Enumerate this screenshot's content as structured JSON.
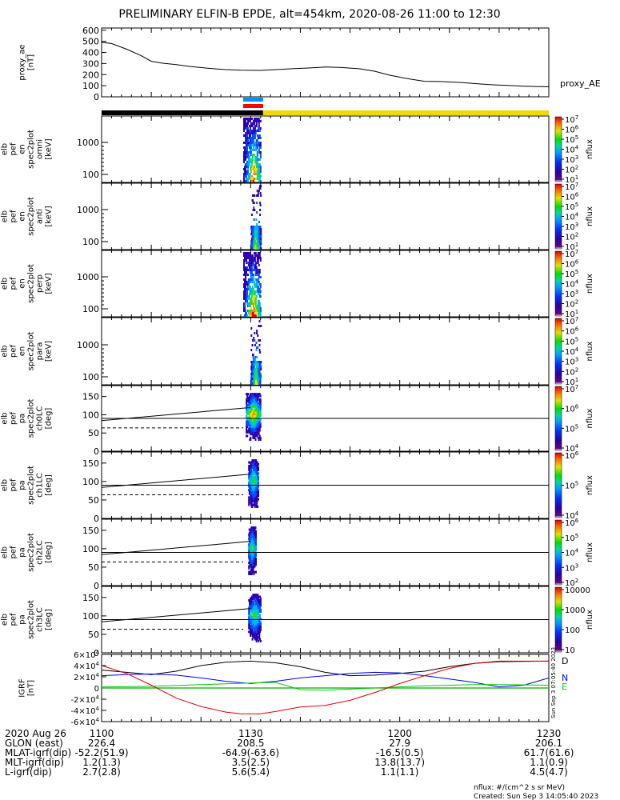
{
  "title": "PRELIMINARY ELFIN-B EPDE, alt=454km, 2020-08-26 11:00 to 12:30",
  "footer": {
    "units": "nflux: #/(cm^2 s sr MeV)",
    "created": "Created: Sun Sep  3 14:05:40 2023",
    "side_stamp": "Sun Sep  3 07:05:40 2023"
  },
  "time_axis": {
    "ticks": [
      "1100",
      "1130",
      "1200",
      "1230"
    ],
    "tick_minutes": [
      0,
      30,
      60,
      90
    ]
  },
  "ephemeris": {
    "labels": [
      "2020 Aug 26",
      "GLON (east)",
      "MLAT-igrf(dip)",
      "MLT-igrf(dip)",
      "L-igrf(dip)"
    ],
    "rows": [
      [
        "226.4",
        "208.5",
        "27.9",
        "206.1"
      ],
      [
        "-52.2(51.9)",
        "-64.9(-63.6)",
        "-16.5(0.5)",
        "61.7(61.6)"
      ],
      [
        "1.2(1.3)",
        "3.5(2.5)",
        "13.8(13.7)",
        "1.1(0.9)"
      ],
      [
        "2.7(2.8)",
        "5.6(5.4)",
        "1.1(1.1)",
        "4.5(4.7)"
      ]
    ]
  },
  "status_bars": [
    {
      "color": "#000000",
      "segments": [
        [
          0,
          32.5
        ]
      ]
    },
    {
      "color": "#f5d800",
      "segments": [
        [
          32.5,
          90
        ]
      ]
    },
    {
      "color": "#ff0000",
      "segments": [
        [
          28.5,
          32.5
        ]
      ]
    },
    {
      "color": "#0090ff",
      "segments": [
        [
          28.5,
          32.5
        ]
      ]
    }
  ],
  "chart_data": [
    {
      "type": "line",
      "ylabel": [
        "proxy_ae",
        "[nT]"
      ],
      "series": [
        {
          "name": "proxy_AE",
          "color": "#000000",
          "x": [
            0,
            2,
            5,
            8,
            10,
            12,
            15,
            18,
            22,
            25,
            28,
            32,
            35,
            38,
            42,
            45,
            48,
            52,
            55,
            58,
            62,
            65,
            68,
            72,
            75,
            78,
            82,
            85,
            88,
            90
          ],
          "y": [
            490,
            480,
            430,
            370,
            320,
            305,
            290,
            272,
            255,
            245,
            240,
            238,
            245,
            252,
            260,
            268,
            265,
            252,
            230,
            195,
            160,
            140,
            138,
            130,
            120,
            110,
            102,
            96,
            92,
            90
          ]
        }
      ],
      "yticks": [
        0,
        100,
        200,
        300,
        400,
        500,
        600
      ],
      "ylim": [
        0,
        620
      ]
    },
    {
      "type": "heatmap",
      "ylabel": [
        "elb",
        "pef",
        "en",
        "spec2plot",
        "omni",
        "[keV]"
      ],
      "yticks": [
        "100",
        "1000"
      ],
      "cbar_label": "nflux",
      "cbar_ticks": [
        "10^1",
        "10^2",
        "10^3",
        "10^4",
        "10^5",
        "10^6",
        "10^7"
      ],
      "active_range": [
        28.5,
        32.0
      ],
      "peak": 30.5
    },
    {
      "type": "heatmap",
      "ylabel": [
        "elb",
        "pef",
        "en",
        "spec2plot",
        "anti",
        "[keV]"
      ],
      "yticks": [
        "100",
        "1000"
      ],
      "cbar_label": "nflux",
      "cbar_ticks": [
        "10^1",
        "10^2",
        "10^3",
        "10^4",
        "10^5",
        "10^6",
        "10^7"
      ],
      "active_range": [
        30.0,
        32.0
      ],
      "peak": 31.0
    },
    {
      "type": "heatmap",
      "ylabel": [
        "elb",
        "pef",
        "en",
        "spec2plot",
        "perp",
        "[keV]"
      ],
      "yticks": [
        "100",
        "1000"
      ],
      "cbar_label": "nflux",
      "cbar_ticks": [
        "10^1",
        "10^2",
        "10^3",
        "10^4",
        "10^5",
        "10^6",
        "10^7"
      ],
      "active_range": [
        28.5,
        32.0
      ],
      "peak": 30.5
    },
    {
      "type": "heatmap",
      "ylabel": [
        "elb",
        "pef",
        "en",
        "spec2plot",
        "para",
        "[keV]"
      ],
      "yticks": [
        "100",
        "1000"
      ],
      "cbar_label": "nflux",
      "cbar_ticks": [
        "10^1",
        "10^2",
        "10^3",
        "10^4",
        "10^5",
        "10^6",
        "10^7"
      ],
      "active_range": [
        30.0,
        32.0
      ],
      "peak": 31.0
    },
    {
      "type": "heatmap",
      "ylabel": [
        "elb",
        "pef",
        "pa",
        "spec2plot",
        "ch0LC",
        "[deg]"
      ],
      "yticks": [
        0,
        50,
        100,
        150
      ],
      "ylim": [
        0,
        180
      ],
      "cbar_label": "nflux",
      "cbar_ticks": [
        "10^4",
        "10^5",
        "10^6",
        "10^7"
      ],
      "hline": 90,
      "lc_solid": [
        [
          0,
          84
        ],
        [
          30,
          120
        ]
      ],
      "lc_dash": [
        [
          0,
          64
        ],
        [
          28.5,
          64
        ]
      ],
      "active_range": [
        29.0,
        32.0
      ]
    },
    {
      "type": "heatmap",
      "ylabel": [
        "elb",
        "pef",
        "pa",
        "spec2plot",
        "ch1LC",
        "[deg]"
      ],
      "yticks": [
        0,
        50,
        100,
        150
      ],
      "ylim": [
        0,
        180
      ],
      "cbar_label": "nflux",
      "cbar_ticks": [
        "10^4",
        "10^5",
        "10^6"
      ],
      "hline": 90,
      "lc_solid": [
        [
          0,
          84
        ],
        [
          30,
          120
        ]
      ],
      "lc_dash": [
        [
          0,
          64
        ],
        [
          28.5,
          64
        ]
      ],
      "active_range": [
        29.5,
        31.5
      ]
    },
    {
      "type": "heatmap",
      "ylabel": [
        "elb",
        "pef",
        "pa",
        "spec2plot",
        "ch2LC",
        "[deg]"
      ],
      "yticks": [
        0,
        50,
        100,
        150
      ],
      "ylim": [
        0,
        180
      ],
      "cbar_label": "nflux",
      "cbar_ticks": [
        "10^2",
        "10^3",
        "10^4",
        "10^5",
        "10^6"
      ],
      "hline": 90,
      "lc_solid": [
        [
          0,
          84
        ],
        [
          30,
          120
        ]
      ],
      "lc_dash": [
        [
          0,
          64
        ],
        [
          28.5,
          64
        ]
      ],
      "active_range": [
        29.5,
        31.0
      ]
    },
    {
      "type": "heatmap",
      "ylabel": [
        "elb",
        "pef",
        "pa",
        "spec2plot",
        "ch3LC",
        "[deg]"
      ],
      "yticks": [
        0,
        50,
        100,
        150
      ],
      "ylim": [
        0,
        180
      ],
      "cbar_label": "nflux",
      "cbar_ticks": [
        "10",
        "100",
        "1000",
        "10000"
      ],
      "hline": 90,
      "lc_solid": [
        [
          0,
          84
        ],
        [
          30,
          120
        ]
      ],
      "lc_dash": [
        [
          0,
          64
        ],
        [
          28.5,
          64
        ]
      ],
      "active_range": [
        29.5,
        32.0
      ]
    },
    {
      "type": "line",
      "ylabel": [
        "IGRF",
        "[nT]"
      ],
      "yticks": [
        "-6×10^4",
        "-4×10^4",
        "-2×10^4",
        "0",
        "2×10^4",
        "4×10^4",
        "6×10^4"
      ],
      "ylim": [
        -60000,
        60000
      ],
      "series": [
        {
          "name": "D",
          "color": "#000000",
          "x": [
            0,
            5,
            10,
            15,
            20,
            25,
            30,
            35,
            40,
            45,
            50,
            55,
            60,
            65,
            70,
            75,
            80,
            85,
            90
          ],
          "y": [
            32000,
            28000,
            24000,
            30000,
            40000,
            46000,
            48000,
            45000,
            38000,
            28000,
            22000,
            23000,
            26000,
            30000,
            38000,
            44000,
            47000,
            47500,
            48000
          ]
        },
        {
          "name": "N",
          "color": "#0000ff",
          "x": [
            0,
            5,
            10,
            15,
            20,
            25,
            30,
            35,
            40,
            45,
            50,
            55,
            60,
            65,
            70,
            75,
            80,
            85,
            90
          ],
          "y": [
            22000,
            24000,
            25000,
            23000,
            18000,
            12000,
            8000,
            12000,
            18000,
            22000,
            26000,
            28000,
            27000,
            22000,
            16000,
            10000,
            2000,
            5000,
            18000
          ]
        },
        {
          "name": "E",
          "color": "#00cc00",
          "x": [
            0,
            5,
            10,
            15,
            20,
            25,
            30,
            35,
            40,
            45,
            50,
            55,
            60,
            65,
            70,
            75,
            80,
            85,
            90
          ],
          "y": [
            2000,
            2500,
            3000,
            4500,
            6000,
            7500,
            9000,
            10000,
            -3000,
            -4000,
            -2000,
            0,
            2000,
            4000,
            5000,
            6000,
            6000,
            5500,
            5000
          ]
        },
        {
          "name": "",
          "color": "#dd0000",
          "x": [
            0,
            5,
            10,
            15,
            20,
            25,
            28,
            32,
            35,
            40,
            45,
            50,
            55,
            60,
            65,
            70,
            75,
            80,
            85,
            90
          ],
          "y": [
            40000,
            26000,
            5000,
            -18000,
            -33000,
            -43000,
            -46000,
            -46000,
            -42000,
            -34000,
            -31000,
            -22000,
            -8000,
            8000,
            22000,
            35000,
            44000,
            48000,
            48000,
            48000
          ]
        }
      ]
    }
  ]
}
